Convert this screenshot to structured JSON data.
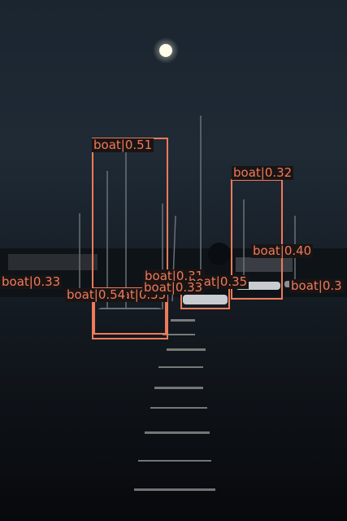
{
  "detections": [
    {
      "label": "boat|0.51"
    },
    {
      "label": "boat|0.54"
    },
    {
      "label": "boat|0.55"
    },
    {
      "label": "boat|0.32"
    },
    {
      "label": "boat|0.40"
    },
    {
      "label": "boat|0.31"
    },
    {
      "label": "boat|0.35"
    },
    {
      "label": "boat|0.33"
    },
    {
      "label": "boat|0.33"
    },
    {
      "label": "boat|0.3"
    }
  ],
  "colors": {
    "box": "#f07a5a",
    "sky": "#1a2430",
    "water": "#0a0f15"
  }
}
